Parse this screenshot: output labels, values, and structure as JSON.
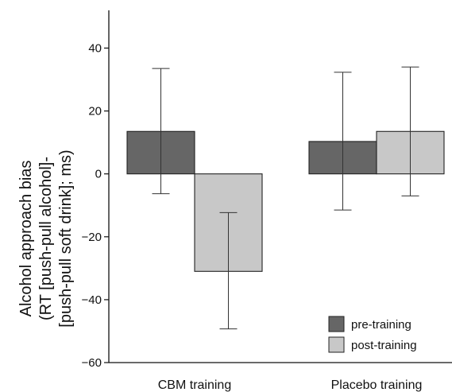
{
  "chart_data": {
    "type": "bar",
    "categories": [
      "CBM training",
      "Placebo training"
    ],
    "series": [
      {
        "name": "pre-training",
        "color": "#666666",
        "values": [
          13.5,
          10.3
        ],
        "error_upper": [
          33.5,
          32.3
        ],
        "error_lower": [
          -6.3,
          -11.5
        ]
      },
      {
        "name": "post-training",
        "color": "#c8c8c8",
        "values": [
          -31,
          13.5
        ],
        "error_upper": [
          -12.3,
          34.0
        ],
        "error_lower": [
          -49.3,
          -7.0
        ]
      }
    ],
    "ylabel_lines": [
      "Alcohol approach bias",
      "(RT [push-pull alcohol]-",
      "[push-pull soft drink]; ms)"
    ],
    "ylim": [
      -60,
      52
    ],
    "yticks": [
      -60,
      -40,
      -20,
      0,
      20,
      40
    ],
    "ytick_labels": [
      "−60",
      "−40",
      "−20",
      "0",
      "20",
      "40"
    ],
    "grid": false,
    "legend_position": "bottom-right"
  }
}
